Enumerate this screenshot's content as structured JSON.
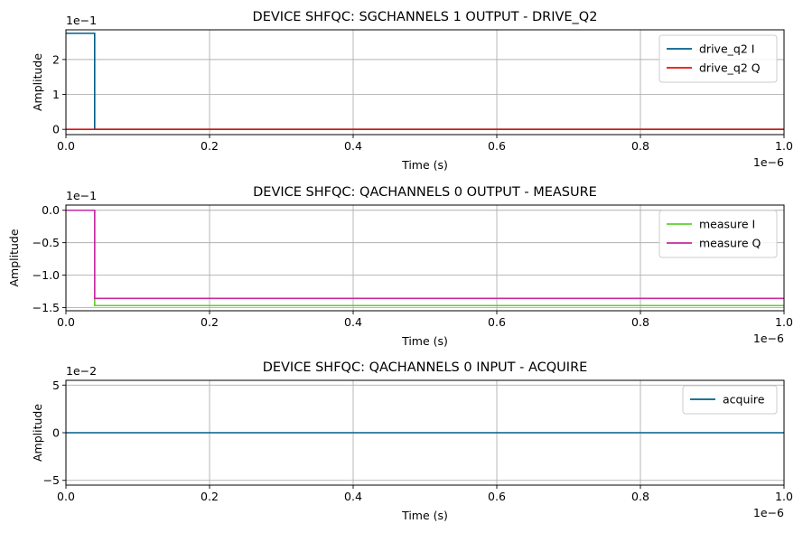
{
  "chart_data": [
    {
      "type": "line",
      "title": "DEVICE SHFQC: SGCHANNELS 1 OUTPUT - DRIVE_Q2",
      "xlabel": "Time (s)",
      "ylabel": "Amplitude",
      "xlim": [
        0,
        1.0
      ],
      "ylim": [
        -0.15,
        2.85
      ],
      "xticks": [
        "0.0",
        "0.2",
        "0.4",
        "0.6",
        "0.8",
        "1.0"
      ],
      "yticks": [
        "0",
        "1",
        "2"
      ],
      "ytick_values": [
        0,
        1,
        2
      ],
      "x_offset_label": "1e−6",
      "y_offset_label": "1e−1",
      "legend_position": "upper-right",
      "grid": true,
      "series": [
        {
          "name": "drive_q2 I",
          "color": "#005f8a",
          "x": [
            0,
            0.04,
            0.04,
            1.0
          ],
          "y": [
            2.75,
            2.75,
            0,
            0
          ]
        },
        {
          "name": "drive_q2 Q",
          "color": "#e0120c",
          "x": [
            0,
            1.0
          ],
          "y": [
            0,
            0
          ]
        }
      ]
    },
    {
      "type": "line",
      "title": "DEVICE SHFQC: QACHANNELS 0 OUTPUT - MEASURE",
      "xlabel": "Time (s)",
      "ylabel": "Amplitude",
      "xlim": [
        0,
        1.0
      ],
      "ylim": [
        -1.55,
        0.08
      ],
      "xticks": [
        "0.0",
        "0.2",
        "0.4",
        "0.6",
        "0.8",
        "1.0"
      ],
      "yticks": [
        "0.0",
        "−0.5",
        "−1.0",
        "−1.5"
      ],
      "ytick_values": [
        0,
        -0.5,
        -1.0,
        -1.5
      ],
      "x_offset_label": "1e−6",
      "y_offset_label": "1e−1",
      "legend_position": "upper-right",
      "grid": true,
      "series": [
        {
          "name": "measure I",
          "color": "#5ecf2c",
          "x": [
            0,
            0.04,
            0.04,
            1.0
          ],
          "y": [
            0,
            0,
            -1.47,
            -1.47
          ]
        },
        {
          "name": "measure Q",
          "color": "#c62aa0",
          "x": [
            0,
            0.04,
            0.04,
            1.0
          ],
          "y": [
            0,
            0,
            -1.36,
            -1.36
          ]
        }
      ]
    },
    {
      "type": "line",
      "title": "DEVICE SHFQC: QACHANNELS 0 INPUT - ACQUIRE",
      "xlabel": "Time (s)",
      "ylabel": "Amplitude",
      "xlim": [
        0,
        1.0
      ],
      "ylim": [
        -5.5,
        5.5
      ],
      "xticks": [
        "0.0",
        "0.2",
        "0.4",
        "0.6",
        "0.8",
        "1.0"
      ],
      "yticks": [
        "5",
        "0",
        "−5"
      ],
      "ytick_values": [
        5,
        0,
        -5
      ],
      "x_offset_label": "1e−6",
      "y_offset_label": "1e−2",
      "legend_position": "upper-right",
      "grid": true,
      "series": [
        {
          "name": "acquire",
          "color": "#005f8a",
          "x": [
            0,
            1.0
          ],
          "y": [
            0,
            0
          ]
        }
      ]
    }
  ]
}
